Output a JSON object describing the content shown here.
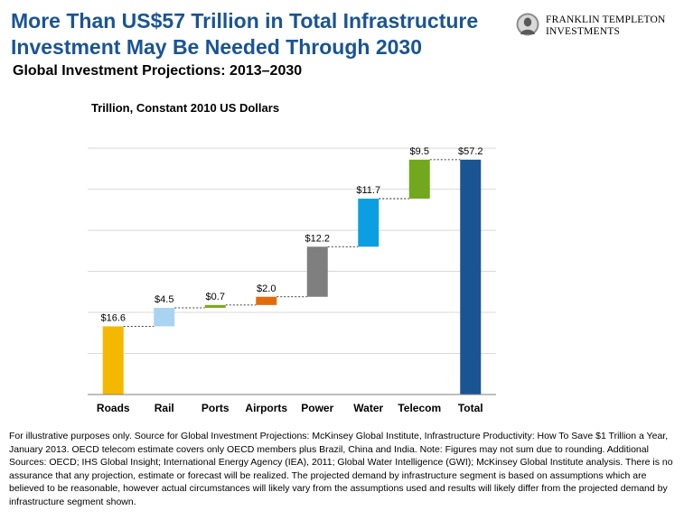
{
  "header": {
    "title": "More Than US$57 Trillion in Total Infrastructure Investment May Be Needed Through 2030",
    "subtitle": "Global Investment Projections: 2013–2030"
  },
  "logo": {
    "line1": "FRANKLIN TEMPLETON",
    "line2": "INVESTMENTS"
  },
  "chart_data": {
    "type": "bar",
    "subtype": "waterfall",
    "ylabel": "Trillion, Constant 2010 US Dollars",
    "ylim": [
      0,
      67.5
    ],
    "grid": true,
    "categories": [
      "Roads",
      "Rail",
      "Ports",
      "Airports",
      "Power",
      "Water",
      "Telecom",
      "Total"
    ],
    "values": [
      16.6,
      4.5,
      0.7,
      2.0,
      12.2,
      11.7,
      9.5,
      57.2
    ],
    "data_labels": [
      "$16.6",
      "$4.5",
      "$0.7",
      "$2.0",
      "$12.2",
      "$11.7",
      "$9.5",
      "$57.2"
    ],
    "colors": [
      "#f5b800",
      "#a8d4f2",
      "#7ea823",
      "#e26c0c",
      "#7f7f7f",
      "#0b9fe2",
      "#72a81e",
      "#1a5493"
    ],
    "connector_style": "dashed"
  },
  "footnote": "For illustrative purposes only. Source for Global Investment Projections: McKinsey Global Institute, Infrastructure Productivity: How To Save $1 Trillion a Year, January 2013. OECD telecom estimate covers only OECD members plus Brazil, China and India. Note: Figures may not sum due to rounding. Additional Sources: OECD; IHS Global Insight; International Energy Agency (IEA), 2011; Global Water Intelligence (GWI); McKinsey Global Institute analysis. There is no assurance that any projection, estimate or forecast will be realized. The projected demand by infrastructure segment is based on assumptions which are believed to be reasonable, however actual circumstances will likely vary from the assumptions used and results will likely differ from the projected demand by infrastructure segment shown."
}
